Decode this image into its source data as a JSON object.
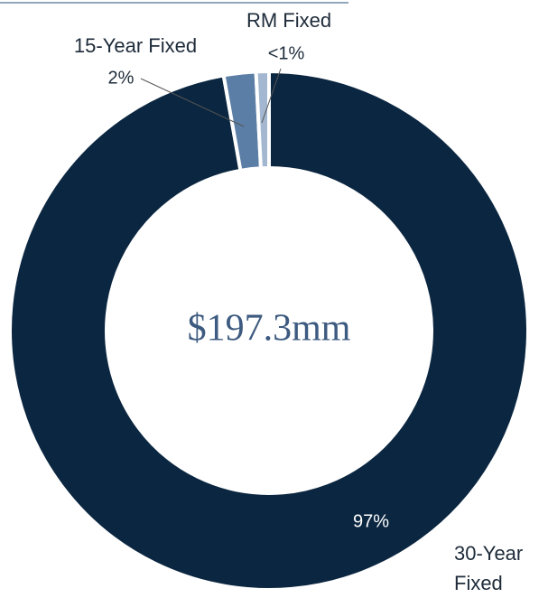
{
  "chart_data": {
    "type": "donut",
    "categories": [
      "30-Year Fixed",
      "15-Year Fixed",
      "RM Fixed"
    ],
    "values": [
      97,
      2,
      0.8
    ],
    "value_labels": [
      "97%",
      "2%",
      "<1%"
    ],
    "colors": [
      "#0b2640",
      "#5b7ea6",
      "#a3b8d0"
    ],
    "center_label": "$197.3mm"
  }
}
